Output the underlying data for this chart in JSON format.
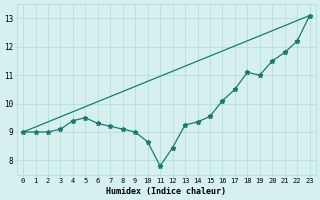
{
  "xlabel": "Humidex (Indice chaleur)",
  "bg_color": "#d6f0f0",
  "line_color": "#1a7a6e",
  "xlim": [
    -0.5,
    23.5
  ],
  "ylim": [
    7.5,
    13.5
  ],
  "xticks": [
    0,
    1,
    2,
    3,
    4,
    5,
    6,
    7,
    8,
    9,
    10,
    11,
    12,
    13,
    14,
    15,
    16,
    17,
    18,
    19,
    20,
    21,
    22,
    23
  ],
  "yticks": [
    8,
    9,
    10,
    11,
    12,
    13
  ],
  "line1_x": [
    0,
    1,
    2,
    3,
    4,
    5,
    6,
    7,
    8,
    9,
    10,
    11,
    12,
    13,
    14,
    15,
    16,
    17,
    18,
    19,
    20,
    21,
    22,
    23
  ],
  "line1_y": [
    9.0,
    9.0,
    9.0,
    9.1,
    9.4,
    9.5,
    9.3,
    9.2,
    9.1,
    9.0,
    8.65,
    7.8,
    8.45,
    9.25,
    9.35,
    9.55,
    10.1,
    10.5,
    11.1,
    11.0,
    11.5,
    11.8,
    12.2,
    13.1
  ],
  "line2_x": [
    0,
    23
  ],
  "line2_y": [
    9.0,
    13.1
  ],
  "grid_color": "#b8dede",
  "tick_fontsize": 5.0,
  "xlabel_fontsize": 6.0
}
